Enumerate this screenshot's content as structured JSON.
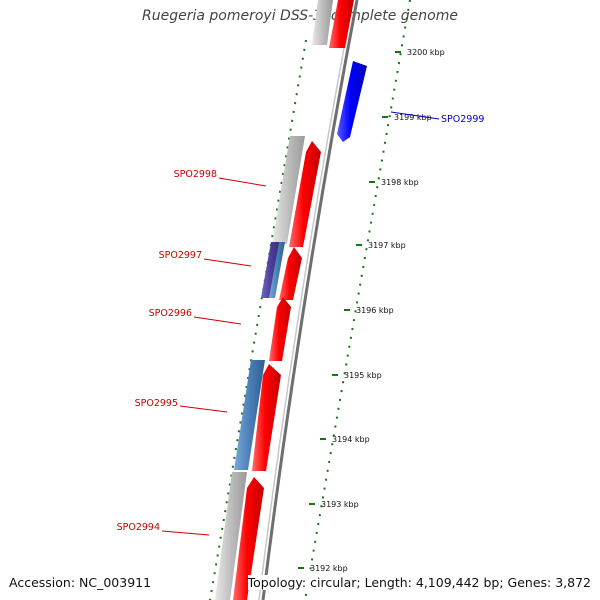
{
  "title": "Ruegeria pomeroyi DSS-3, complete genome",
  "footer": {
    "accession": "Accession: NC_003911",
    "summary": "Topology: circular; Length: 4,109,442 bp; Genes: 3,872"
  },
  "colors": {
    "cds_forward": "#ff0000",
    "cds_reverse": "#0000ff",
    "gc_skew": "#b8b8b8",
    "feature_blue": "#4a7fb8",
    "feature_purple": "#4f3f9a",
    "backbone": "#888888",
    "tick": "#117711",
    "label_red": "#cc0000",
    "label_blue": "#0000cc"
  },
  "kbp_ticks": [
    "3200 kbp",
    "3199 kbp",
    "3198 kbp",
    "3197 kbp",
    "3196 kbp",
    "3195 kbp",
    "3194 kbp",
    "3193 kbp",
    "3192 kbp"
  ],
  "gene_labels": [
    {
      "name": "SPO2999",
      "strand": "reverse"
    },
    {
      "name": "SPO2998",
      "strand": "forward"
    },
    {
      "name": "SPO2997",
      "strand": "forward"
    },
    {
      "name": "SPO2996",
      "strand": "forward"
    },
    {
      "name": "SPO2995",
      "strand": "forward"
    },
    {
      "name": "SPO2994",
      "strand": "forward"
    }
  ]
}
